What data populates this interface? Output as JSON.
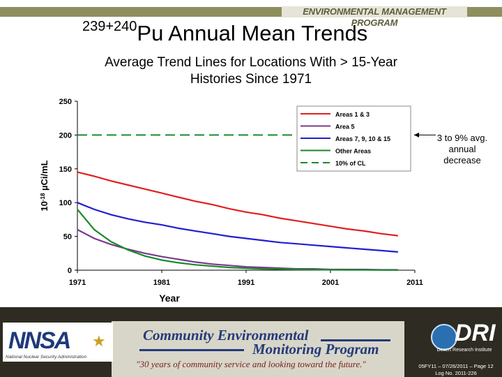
{
  "header": {
    "program_banner": "ENVIRONMENTAL MANAGEMENT PROGRAM",
    "title_superscript": "239+240",
    "title_main": "Pu Annual Mean Trends",
    "subtitle_line1": "Average Trend Lines for Locations With > 15-Year",
    "subtitle_line2": "Histories Since 1971"
  },
  "annotation": {
    "line1": "3 to 9% avg.",
    "line2": "annual",
    "line3": "decrease"
  },
  "chart_data": {
    "type": "line",
    "xlabel": "Year",
    "ylabel_prefix": "10",
    "ylabel_exponent": "-18",
    "ylabel_suffix": " µCi/mL",
    "xlim": [
      1971,
      2011
    ],
    "ylim": [
      0,
      250
    ],
    "x_ticks": [
      1971,
      1981,
      1991,
      2001,
      2011
    ],
    "y_ticks": [
      0,
      50,
      100,
      150,
      200,
      250
    ],
    "grid": false,
    "legend_position": "top-right",
    "series": [
      {
        "name": "Areas 1 & 3",
        "color": "#e02020",
        "dashed": false,
        "x": [
          1971,
          1973,
          1975,
          1977,
          1979,
          1981,
          1983,
          1985,
          1987,
          1989,
          1991,
          1993,
          1995,
          1997,
          1999,
          2001,
          2003,
          2005,
          2007,
          2009
        ],
        "y": [
          145,
          139,
          132,
          126,
          120,
          114,
          108,
          102,
          97,
          91,
          86,
          82,
          77,
          73,
          69,
          65,
          61,
          58,
          54,
          51
        ]
      },
      {
        "name": "Area 5",
        "color": "#7a3a8a",
        "dashed": false,
        "x": [
          1971,
          1973,
          1975,
          1977,
          1979,
          1981,
          1983,
          1985,
          1987,
          1989,
          1991,
          1993,
          1995,
          1997,
          1999,
          2001,
          2003,
          2005,
          2007,
          2009
        ],
        "y": [
          60,
          47,
          38,
          31,
          25,
          20,
          16,
          12,
          9,
          7,
          5,
          4,
          3,
          2,
          2,
          1,
          1,
          1,
          0.5,
          0.5
        ]
      },
      {
        "name": "Areas 7, 9, 10 & 15",
        "color": "#2020d0",
        "dashed": false,
        "x": [
          1971,
          1973,
          1975,
          1977,
          1979,
          1981,
          1983,
          1985,
          1987,
          1989,
          1991,
          1993,
          1995,
          1997,
          1999,
          2001,
          2003,
          2005,
          2007,
          2009
        ],
        "y": [
          100,
          90,
          82,
          76,
          71,
          67,
          62,
          58,
          54,
          50,
          47,
          44,
          41,
          39,
          37,
          35,
          33,
          31,
          29,
          27
        ]
      },
      {
        "name": "Other Areas",
        "color": "#1a8a2a",
        "dashed": false,
        "x": [
          1971,
          1973,
          1975,
          1977,
          1979,
          1981,
          1983,
          1985,
          1987,
          1989,
          1991,
          1993,
          1995,
          1997,
          1999,
          2001,
          2003,
          2005,
          2007,
          2009
        ],
        "y": [
          90,
          60,
          42,
          30,
          21,
          15,
          11,
          8,
          6,
          4,
          3,
          2,
          1.5,
          1,
          0.8,
          0.5,
          0.4,
          0.3,
          0.2,
          0.2
        ]
      },
      {
        "name": "10% of CL",
        "color": "#1a8a2a",
        "dashed": true,
        "x": [
          1971,
          2011
        ],
        "y": [
          200,
          200
        ]
      }
    ]
  },
  "footer": {
    "nnsa_logo": "NNSA",
    "nnsa_subtitle": "National Nuclear Security Administration",
    "program_line1": "Community Environmental",
    "program_line2": "Monitoring Program",
    "tagline": "\"30 years of community service and looking toward the future.\"",
    "dri_logo": "DRI",
    "dri_subtitle": "Desert Research Institute",
    "page_ref": "05FY11 – 07/26/2011 – Page 12",
    "log_no": "Log No. 2011-226"
  }
}
